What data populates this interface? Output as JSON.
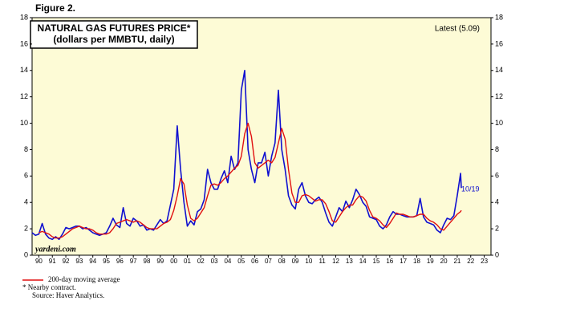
{
  "figure_label": "Figure 2.",
  "chart_data": {
    "type": "line",
    "title": "NATURAL GAS FUTURES PRICE*",
    "subtitle": "(dollars per MMBTU, daily)",
    "annotations": {
      "latest": "Latest (5.09)",
      "last_date": "10/19",
      "source_site": "yardeni.com"
    },
    "footnotes": [
      "* Nearby contract.",
      "Source: Haver Analytics."
    ],
    "x": [
      1990,
      1990.25,
      1990.5,
      1990.75,
      1991,
      1991.25,
      1991.5,
      1991.75,
      1992,
      1992.25,
      1992.5,
      1992.75,
      1993,
      1993.25,
      1993.5,
      1993.75,
      1994,
      1994.25,
      1994.5,
      1994.75,
      1995,
      1995.25,
      1995.5,
      1995.75,
      1996,
      1996.25,
      1996.5,
      1996.75,
      1997,
      1997.25,
      1997.5,
      1997.75,
      1998,
      1998.25,
      1998.5,
      1998.75,
      1999,
      1999.25,
      1999.5,
      1999.75,
      2000,
      2000.25,
      2000.5,
      2000.75,
      2001,
      2001.25,
      2001.5,
      2001.75,
      2002,
      2002.25,
      2002.5,
      2002.75,
      2003,
      2003.25,
      2003.5,
      2003.75,
      2004,
      2004.25,
      2004.5,
      2004.75,
      2005,
      2005.25,
      2005.5,
      2005.75,
      2006,
      2006.25,
      2006.5,
      2006.75,
      2007,
      2007.25,
      2007.5,
      2007.75,
      2008,
      2008.25,
      2008.5,
      2008.75,
      2009,
      2009.25,
      2009.5,
      2009.75,
      2010,
      2010.25,
      2010.5,
      2010.75,
      2011,
      2011.25,
      2011.5,
      2011.75,
      2012,
      2012.25,
      2012.5,
      2012.75,
      2013,
      2013.25,
      2013.5,
      2013.75,
      2014,
      2014.25,
      2014.5,
      2014.75,
      2015,
      2015.25,
      2015.5,
      2015.75,
      2016,
      2016.25,
      2016.5,
      2016.75,
      2017,
      2017.25,
      2017.5,
      2017.75,
      2018,
      2018.25,
      2018.5,
      2018.75,
      2019,
      2019.25,
      2019.5,
      2019.75,
      2020,
      2020.25,
      2020.5,
      2020.75,
      2021,
      2021.25,
      2021.5,
      2021.75,
      2021.8
    ],
    "series": [
      {
        "color": "#1010d0",
        "values": [
          1.7,
          1.5,
          1.6,
          2.4,
          1.6,
          1.3,
          1.2,
          1.4,
          1.2,
          1.6,
          2.1,
          2.0,
          2.1,
          2.2,
          2.2,
          2.0,
          2.1,
          1.9,
          1.7,
          1.6,
          1.5,
          1.6,
          1.7,
          2.2,
          2.8,
          2.3,
          2.1,
          3.6,
          2.4,
          2.2,
          2.8,
          2.6,
          2.2,
          2.3,
          1.9,
          2.0,
          1.9,
          2.3,
          2.7,
          2.4,
          2.6,
          3.8,
          5.0,
          9.8,
          6.5,
          4.0,
          2.2,
          2.6,
          2.3,
          3.3,
          3.5,
          4.2,
          6.5,
          5.5,
          5.0,
          5.0,
          5.8,
          6.4,
          5.5,
          7.5,
          6.5,
          7.0,
          12.5,
          14.0,
          8.0,
          6.5,
          5.5,
          7.0,
          7.0,
          7.8,
          6.0,
          7.5,
          8.5,
          12.5,
          8.0,
          6.5,
          4.5,
          3.8,
          3.5,
          5.0,
          5.5,
          4.5,
          4.0,
          3.9,
          4.2,
          4.4,
          4.0,
          3.2,
          2.5,
          2.2,
          2.9,
          3.6,
          3.3,
          4.1,
          3.6,
          4.2,
          5.0,
          4.6,
          4.0,
          3.7,
          2.9,
          2.8,
          2.7,
          2.2,
          2.0,
          2.3,
          2.9,
          3.3,
          3.1,
          3.1,
          3.0,
          2.9,
          2.9,
          2.9,
          3.0,
          4.3,
          2.9,
          2.5,
          2.4,
          2.3,
          1.9,
          1.7,
          2.3,
          2.8,
          2.7,
          3.0,
          4.5,
          6.2,
          5.09
        ]
      },
      {
        "name": "200-day moving average",
        "color": "#e01010",
        "values": [
          null,
          null,
          1.7,
          1.8,
          1.7,
          1.6,
          1.4,
          1.3,
          1.3,
          1.4,
          1.6,
          1.8,
          2.0,
          2.1,
          2.2,
          2.1,
          2.0,
          2.0,
          1.9,
          1.7,
          1.6,
          1.6,
          1.6,
          1.7,
          2.0,
          2.4,
          2.5,
          2.6,
          2.7,
          2.6,
          2.5,
          2.6,
          2.5,
          2.3,
          2.1,
          2.0,
          2.0,
          2.0,
          2.2,
          2.4,
          2.5,
          2.7,
          3.4,
          4.5,
          5.8,
          5.4,
          3.8,
          2.8,
          2.6,
          2.8,
          3.2,
          3.6,
          4.5,
          5.3,
          5.4,
          5.3,
          5.5,
          5.8,
          6.0,
          6.3,
          6.6,
          6.8,
          7.5,
          9.2,
          10.0,
          9.0,
          7.0,
          6.6,
          6.8,
          7.0,
          7.2,
          7.0,
          7.4,
          8.5,
          9.6,
          8.8,
          6.5,
          4.7,
          4.0,
          4.0,
          4.5,
          4.6,
          4.5,
          4.3,
          4.1,
          4.2,
          4.2,
          3.9,
          3.3,
          2.6,
          2.5,
          2.9,
          3.3,
          3.6,
          3.8,
          3.8,
          4.2,
          4.5,
          4.4,
          4.1,
          3.4,
          2.9,
          2.8,
          2.6,
          2.3,
          2.1,
          2.4,
          2.8,
          3.2,
          3.1,
          3.1,
          3.0,
          2.9,
          2.9,
          3.0,
          3.1,
          3.1,
          2.8,
          2.6,
          2.5,
          2.3,
          2.0,
          1.9,
          2.2,
          2.5,
          2.8,
          3.1,
          3.3,
          3.4
        ]
      }
    ],
    "xlim": [
      1990,
      2024
    ],
    "xticks": [
      {
        "value": 1990.5,
        "label": "90"
      },
      {
        "value": 1991.5,
        "label": "91"
      },
      {
        "value": 1992.5,
        "label": "92"
      },
      {
        "value": 1993.5,
        "label": "93"
      },
      {
        "value": 1994.5,
        "label": "94"
      },
      {
        "value": 1995.5,
        "label": "95"
      },
      {
        "value": 1996.5,
        "label": "96"
      },
      {
        "value": 1997.5,
        "label": "97"
      },
      {
        "value": 1998.5,
        "label": "98"
      },
      {
        "value": 1999.5,
        "label": "99"
      },
      {
        "value": 2000.5,
        "label": "00"
      },
      {
        "value": 2001.5,
        "label": "01"
      },
      {
        "value": 2002.5,
        "label": "02"
      },
      {
        "value": 2003.5,
        "label": "03"
      },
      {
        "value": 2004.5,
        "label": "04"
      },
      {
        "value": 2005.5,
        "label": "05"
      },
      {
        "value": 2006.5,
        "label": "06"
      },
      {
        "value": 2007.5,
        "label": "07"
      },
      {
        "value": 2008.5,
        "label": "08"
      },
      {
        "value": 2009.5,
        "label": "09"
      },
      {
        "value": 2010.5,
        "label": "10"
      },
      {
        "value": 2011.5,
        "label": "11"
      },
      {
        "value": 2012.5,
        "label": "12"
      },
      {
        "value": 2013.5,
        "label": "13"
      },
      {
        "value": 2014.5,
        "label": "14"
      },
      {
        "value": 2015.5,
        "label": "15"
      },
      {
        "value": 2016.5,
        "label": "16"
      },
      {
        "value": 2017.5,
        "label": "17"
      },
      {
        "value": 2018.5,
        "label": "18"
      },
      {
        "value": 2019.5,
        "label": "19"
      },
      {
        "value": 2020.5,
        "label": "20"
      },
      {
        "value": 2021.5,
        "label": "21"
      },
      {
        "value": 2022.5,
        "label": "22"
      },
      {
        "value": 2023.5,
        "label": "23"
      }
    ],
    "ylim": [
      0,
      18
    ],
    "yticks": [
      0,
      2,
      4,
      6,
      8,
      10,
      12,
      14,
      16,
      18
    ],
    "grid": false
  }
}
